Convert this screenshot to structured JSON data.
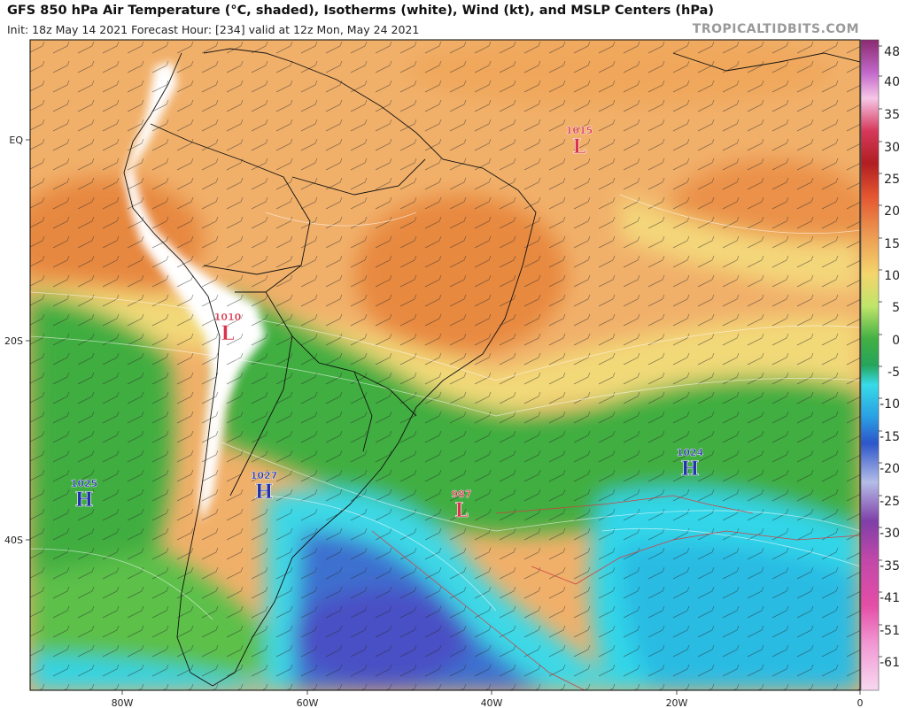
{
  "header": {
    "title": "GFS 850 hPa Air Temperature (°C, shaded), Isotherms (white), Wind (kt), and MSLP Centers (hPa)",
    "subtitle": "Init: 18z May 14 2021   Forecast Hour: [234]   valid at 12z Mon, May 24 2021",
    "brand": "TROPICALTIDBITS.COM"
  },
  "map": {
    "lat_labels": [
      "EQ",
      "20S",
      "40S"
    ],
    "lon_labels": [
      "80W",
      "60W",
      "40W",
      "20W",
      "0"
    ]
  },
  "colorbar": {
    "ticks": [
      "48",
      "40",
      "35",
      "30",
      "25",
      "20",
      "15",
      "10",
      "5",
      "0",
      "-5",
      "-10",
      "-15",
      "-20",
      "-25",
      "-30",
      "-35",
      "-41",
      "-51",
      "-61"
    ]
  },
  "pressure_centers": [
    {
      "type": "L",
      "value": "1015",
      "color": "#d9334a"
    },
    {
      "type": "L",
      "value": "1010",
      "color": "#d9334a"
    },
    {
      "type": "H",
      "value": "1025",
      "color": "#2233aa"
    },
    {
      "type": "H",
      "value": "1027",
      "color": "#2233aa"
    },
    {
      "type": "L",
      "value": "987",
      "color": "#d9334a"
    },
    {
      "type": "H",
      "value": "1024",
      "color": "#2233aa"
    }
  ],
  "colors": {
    "warm_orange": "#ea8f47",
    "light_orange": "#f4b26a",
    "yellow": "#f1de74",
    "green": "#3fae3f",
    "light_green": "#8ad36a",
    "cyan": "#35d6ea",
    "blue": "#4b65d0",
    "highland_white": "#ffffff"
  }
}
